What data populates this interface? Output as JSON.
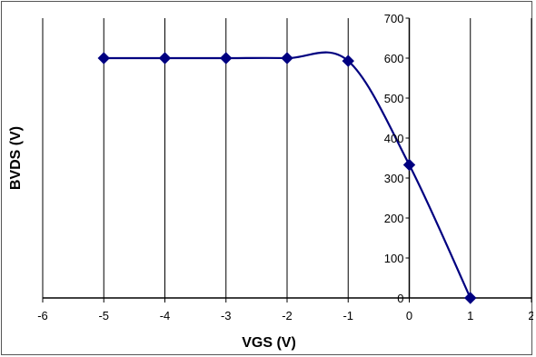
{
  "chart_data": {
    "type": "scatter",
    "title": "",
    "xlabel": "VGS (V)",
    "ylabel": "BVDS (V)",
    "xlim": [
      -6,
      2
    ],
    "ylim": [
      0,
      700
    ],
    "x_ticks": [
      -6,
      -5,
      -4,
      -3,
      -2,
      -1,
      0,
      1,
      2
    ],
    "y_ticks": [
      0,
      100,
      200,
      300,
      400,
      500,
      600,
      700
    ],
    "x_tick_labels": [
      "-6",
      "-5",
      "-4",
      "-3",
      "-2",
      "-1",
      "0",
      "1",
      "2"
    ],
    "y_tick_labels": [
      "0",
      "100",
      "200",
      "300",
      "400",
      "500",
      "600",
      "700"
    ],
    "grid": "vertical gridlines at x ticks",
    "smoothed_line": true,
    "marker": "diamond",
    "series": [
      {
        "color": "#000080",
        "points": [
          {
            "x": -5,
            "y": 600
          },
          {
            "x": -4,
            "y": 600
          },
          {
            "x": -3,
            "y": 600
          },
          {
            "x": -2,
            "y": 600
          },
          {
            "x": -1,
            "y": 593
          },
          {
            "x": 0,
            "y": 333
          },
          {
            "x": 1,
            "y": 0
          }
        ]
      }
    ]
  }
}
